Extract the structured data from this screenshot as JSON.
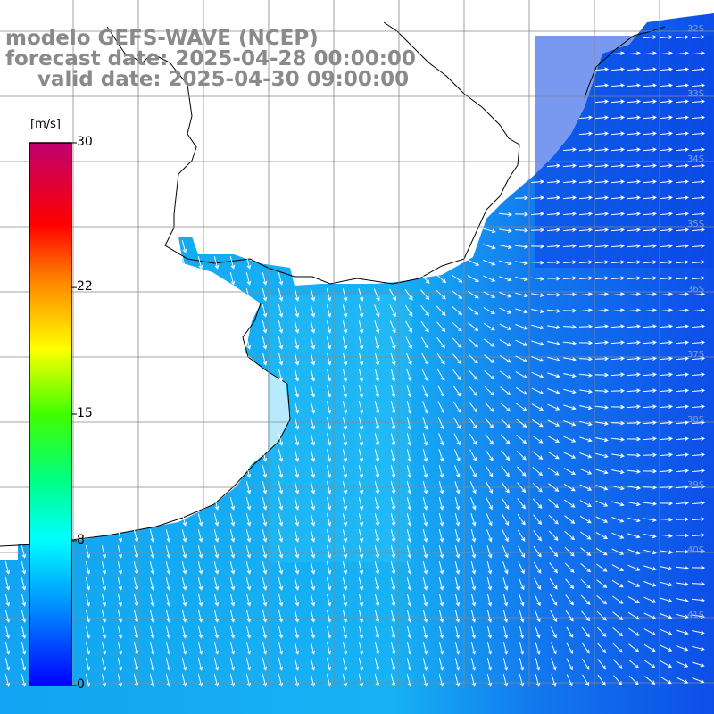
{
  "title": {
    "line1": "modelo GEFS-WAVE (NCEP)",
    "line2": "forecast date: 2025-04-28 00:00:00",
    "line3": "valid date: 2025-04-30 09:00:00"
  },
  "colorbar": {
    "unit": "[m/s]",
    "ticks": [
      {
        "label": "30",
        "value": 30
      },
      {
        "label": "22",
        "value": 22
      },
      {
        "label": "15",
        "value": 15
      },
      {
        "label": "8",
        "value": 8
      },
      {
        "label": "0",
        "value": 0
      }
    ],
    "colors": [
      "#0000ff",
      "#0066ff",
      "#00c8ff",
      "#00ffcc",
      "#00ff66",
      "#33ff00",
      "#aaff00",
      "#ffff00",
      "#ffaa00",
      "#ff5500",
      "#ff0000",
      "#ff0055",
      "#dd0066",
      "#c0006e"
    ]
  },
  "latitude_labels": [
    "32S",
    "33S",
    "34S",
    "35S",
    "36S",
    "37S",
    "38S",
    "39S",
    "40S",
    "41S"
  ],
  "field": {
    "variable": "wind speed",
    "ocean_base_color": "#1aa0f0",
    "offshore_color": "#1060ee"
  }
}
